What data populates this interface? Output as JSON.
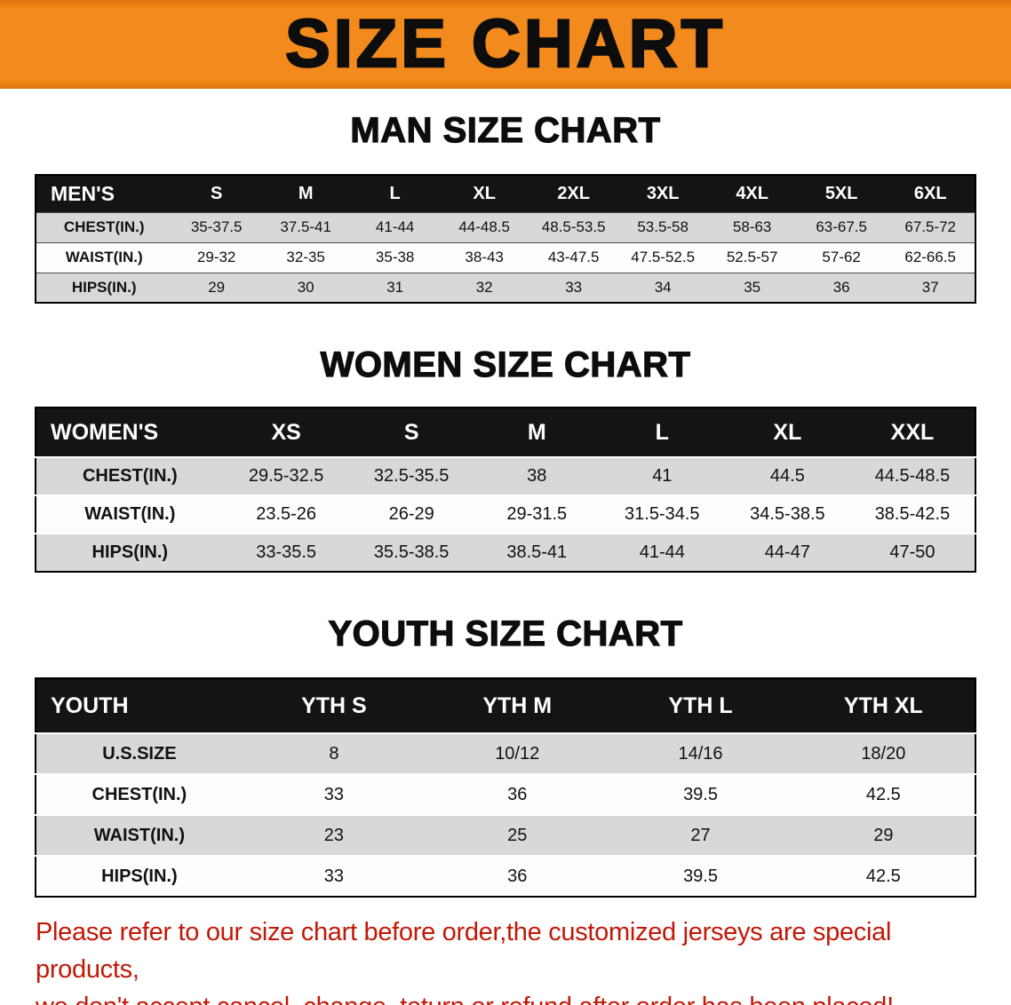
{
  "banner": {
    "title": "SIZE CHART",
    "bg_color": "#F28A1D",
    "text_color": "#0D0D0D"
  },
  "sections": [
    {
      "heading": "MAN SIZE CHART",
      "name": "men-size-table",
      "table": {
        "header": [
          "MEN'S",
          "S",
          "M",
          "L",
          "XL",
          "2XL",
          "3XL",
          "4XL",
          "5XL",
          "6XL"
        ],
        "rows": [
          [
            "CHEST(IN.)",
            "35-37.5",
            "37.5-41",
            "41-44",
            "44-48.5",
            "48.5-53.5",
            "53.5-58",
            "58-63",
            "63-67.5",
            "67.5-72"
          ],
          [
            "WAIST(IN.)",
            "29-32",
            "32-35",
            "35-38",
            "38-43",
            "43-47.5",
            "47.5-52.5",
            "52.5-57",
            "57-62",
            "62-66.5"
          ],
          [
            "HIPS(IN.)",
            "29",
            "30",
            "31",
            "32",
            "33",
            "34",
            "35",
            "36",
            "37"
          ]
        ]
      }
    },
    {
      "heading": "WOMEN SIZE CHART",
      "name": "women-size-table",
      "table": {
        "header": [
          "WOMEN'S",
          "XS",
          "S",
          "M",
          "L",
          "XL",
          "XXL"
        ],
        "rows": [
          [
            "CHEST(IN.)",
            "29.5-32.5",
            "32.5-35.5",
            "38",
            "41",
            "44.5",
            "44.5-48.5"
          ],
          [
            "WAIST(IN.)",
            "23.5-26",
            "26-29",
            "29-31.5",
            "31.5-34.5",
            "34.5-38.5",
            "38.5-42.5"
          ],
          [
            "HIPS(IN.)",
            "33-35.5",
            "35.5-38.5",
            "38.5-41",
            "41-44",
            "44-47",
            "47-50"
          ]
        ]
      }
    },
    {
      "heading": "YOUTH SIZE CHART",
      "name": "youth-size-table",
      "table": {
        "header": [
          "YOUTH",
          "YTH S",
          "YTH M",
          "YTH L",
          "YTH XL"
        ],
        "rows": [
          [
            "U.S.SIZE",
            "8",
            "10/12",
            "14/16",
            "18/20"
          ],
          [
            "CHEST(IN.)",
            "33",
            "36",
            "39.5",
            "42.5"
          ],
          [
            "WAIST(IN.)",
            "23",
            "25",
            "27",
            "29"
          ],
          [
            "HIPS(IN.)",
            "33",
            "36",
            "39.5",
            "42.5"
          ]
        ]
      }
    }
  ],
  "footer": {
    "lines": [
      "Please refer to our size chart before order,the customized jerseys are special products,",
      "we don't accept cancel, change, teturn or refund after order has been placed!"
    ],
    "text_color": "#C21807"
  }
}
